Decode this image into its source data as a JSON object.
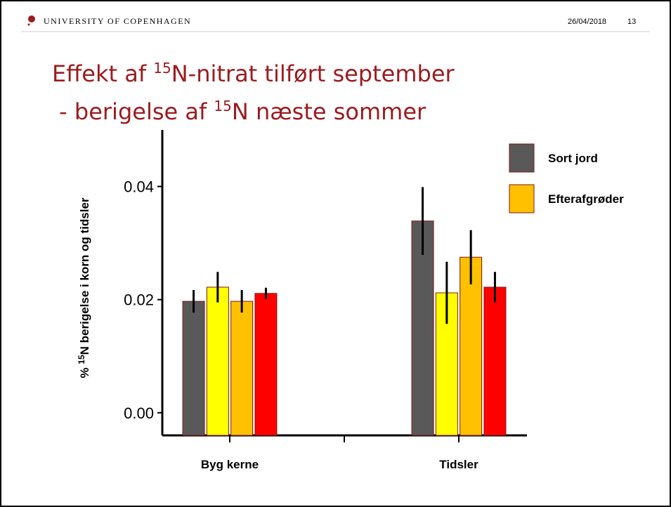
{
  "header": {
    "institution": "UNIVERSITY OF COPENHAGEN",
    "date": "26/04/2018",
    "page": "13"
  },
  "title": {
    "line1_a": "Effekt af ",
    "line1_sup": "15",
    "line1_b": "N-nitrat tilført september",
    "line2_a": " - berigelse af ",
    "line2_sup": "15",
    "line2_b": "N næste sommer"
  },
  "chart_data": {
    "type": "bar",
    "ylabel_a": "% ",
    "ylabel_sup": "15",
    "ylabel_b": "N berigelse i korn og tidsler",
    "categories": [
      "Byg kerne",
      "Tidsler"
    ],
    "series": [
      {
        "name": "Sort jord",
        "color": "#595959",
        "values": [
          0.0197,
          0.0339
        ],
        "errors": [
          0.002,
          0.006
        ]
      },
      {
        "color": "#ffff00",
        "values": [
          0.0222,
          0.0212
        ],
        "errors": [
          0.0027,
          0.0055
        ]
      },
      {
        "name": "Efterafgrøder",
        "color": "#ffc000",
        "values": [
          0.0197,
          0.0275
        ],
        "errors": [
          0.002,
          0.0048
        ]
      },
      {
        "color": "#ff0000",
        "values": [
          0.0211,
          0.0222
        ],
        "errors": [
          0.001,
          0.0027
        ]
      }
    ],
    "ylim": [
      -0.004,
      0.05
    ],
    "yticks": [
      {
        "value": 0,
        "label": "0.00"
      },
      0.02,
      0.04
    ]
  }
}
